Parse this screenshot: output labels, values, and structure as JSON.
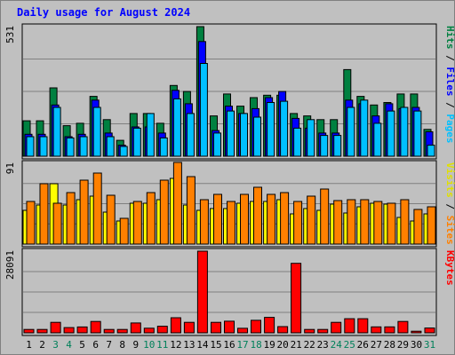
{
  "chart_data": {
    "type": "bar",
    "title": "Daily usage for August 2024",
    "days": [
      "1",
      "2",
      "3",
      "4",
      "5",
      "6",
      "7",
      "8",
      "9",
      "10",
      "11",
      "12",
      "13",
      "14",
      "15",
      "16",
      "17",
      "18",
      "19",
      "20",
      "21",
      "22",
      "23",
      "24",
      "25",
      "26",
      "27",
      "28",
      "29",
      "30",
      "31"
    ],
    "weekend_days": [
      "3",
      "4",
      "10",
      "11",
      "17",
      "18",
      "24",
      "25",
      "31"
    ],
    "panels": [
      {
        "id": "hits",
        "ymax_label": "531",
        "ymax": 531,
        "right_labels": [
          {
            "text": "Hits",
            "color": "#008040"
          },
          {
            "text": " / ",
            "color": "#000000"
          },
          {
            "text": "Files",
            "color": "#0000FF"
          },
          {
            "text": " / ",
            "color": "#000000"
          },
          {
            "text": "Pages",
            "color": "#00C0FF"
          }
        ],
        "series": [
          {
            "name": "Hits",
            "color": "#008040",
            "values": [
              145,
              145,
              280,
              125,
              135,
              245,
              150,
              65,
              175,
              175,
              135,
              290,
              265,
              531,
              165,
              255,
              205,
              240,
              250,
              250,
              175,
              165,
              150,
              150,
              355,
              245,
              210,
              220,
              255,
              255,
              110
            ]
          },
          {
            "name": "Files",
            "color": "#0000FF",
            "values": [
              90,
              90,
              210,
              80,
              90,
              230,
              95,
              45,
              120,
              120,
              95,
              270,
              215,
              470,
              105,
              205,
              175,
              195,
              240,
              265,
              155,
              115,
              95,
              95,
              230,
              215,
              165,
              215,
              195,
              200,
              100
            ]
          },
          {
            "name": "Pages",
            "color": "#00C0FF",
            "values": [
              80,
              80,
              200,
              75,
              80,
              200,
              80,
              40,
              115,
              175,
              75,
              235,
              175,
              380,
              95,
              185,
              175,
              160,
              220,
              225,
              115,
              150,
              85,
              85,
              200,
              230,
              135,
              185,
              200,
              185,
              45
            ]
          }
        ]
      },
      {
        "id": "visits",
        "ymax_label": "91",
        "ymax": 91,
        "right_labels": [
          {
            "text": "Visits",
            "color": "#E0E000"
          },
          {
            "text": " / ",
            "color": "#000000"
          },
          {
            "text": "Sites",
            "color": "#FF8000"
          }
        ],
        "series": [
          {
            "name": "Visits",
            "color": "#FFFF00",
            "values": [
              38,
              44,
              68,
              44,
              50,
              54,
              36,
              26,
              46,
              46,
              50,
              74,
              44,
              38,
              40,
              40,
              46,
              48,
              48,
              50,
              34,
              40,
              38,
              45,
              35,
              42,
              46,
              45,
              30,
              26,
              34
            ]
          },
          {
            "name": "Sites",
            "color": "#FF8000",
            "values": [
              48,
              68,
              46,
              58,
              72,
              80,
              55,
              29,
              48,
              58,
              72,
              92,
              76,
              50,
              56,
              48,
              56,
              64,
              56,
              58,
              48,
              54,
              62,
              49,
              50,
              50,
              48,
              46,
              50,
              39,
              42
            ]
          }
        ]
      },
      {
        "id": "kbytes",
        "ymax_label": "28091",
        "ymax": 28091,
        "right_labels": [
          {
            "text": "KBytes",
            "color": "#FF0000"
          }
        ],
        "series": [
          {
            "name": "KBytes",
            "color": "#FF0000",
            "values": [
              1150,
              1150,
              3600,
              1800,
              2000,
              3900,
              1150,
              1150,
              3400,
              1600,
              2250,
              5200,
              3600,
              28091,
              3600,
              4000,
              1550,
              4300,
              5300,
              2150,
              23900,
              1150,
              1150,
              3600,
              4850,
              4850,
              2050,
              2050,
              3900,
              550,
              1650
            ]
          }
        ]
      }
    ]
  }
}
